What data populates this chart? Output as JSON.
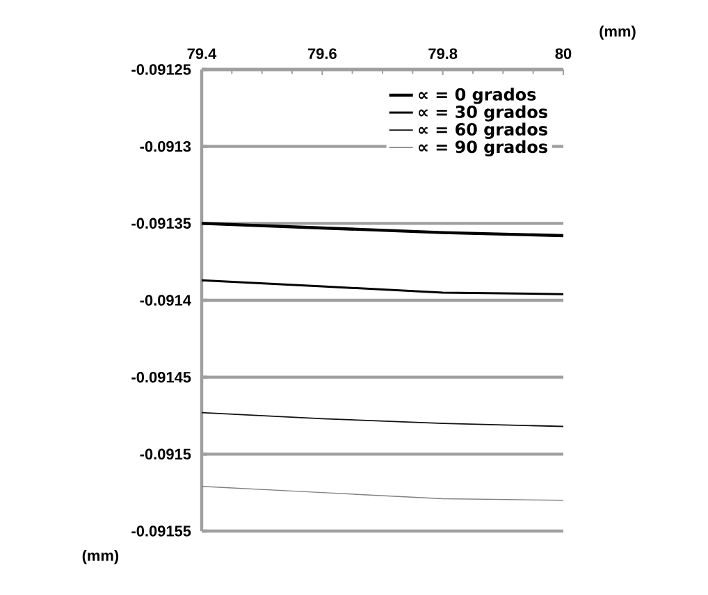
{
  "chart_data": {
    "type": "line",
    "xlabel": "(mm)",
    "ylabel": "(mm)",
    "xlim": [
      79.4,
      80
    ],
    "xticks": [
      79.4,
      79.6,
      79.8,
      80
    ],
    "ylim": [
      -0.09155,
      -0.09125
    ],
    "yticks": [
      -0.09155,
      -0.0915,
      -0.09145,
      -0.0914,
      -0.09135,
      -0.0913,
      -0.09125
    ],
    "grid": "y",
    "legend": "top right",
    "marker": "none",
    "line_style": "solid",
    "series": [
      {
        "name": "∝ = 0 grados",
        "color": "#000000",
        "x": [
          79.4,
          79.6,
          79.8,
          80
        ],
        "values": [
          -0.09135,
          -0.091353,
          -0.091356,
          -0.091358
        ]
      },
      {
        "name": "∝ = 30 grados",
        "color": "#000000",
        "x": [
          79.4,
          79.6,
          79.8,
          80
        ],
        "values": [
          -0.091387,
          -0.091391,
          -0.091395,
          -0.091396
        ]
      },
      {
        "name": "∝ = 60 grados",
        "color": "#111111",
        "x": [
          79.4,
          79.6,
          79.8,
          80
        ],
        "values": [
          -0.091473,
          -0.091477,
          -0.09148,
          -0.091482
        ]
      },
      {
        "name": "∝ = 90 grados",
        "color": "#808080",
        "x": [
          79.4,
          79.6,
          79.8,
          80
        ],
        "values": [
          -0.091521,
          -0.091525,
          -0.091529,
          -0.09153
        ]
      }
    ]
  }
}
